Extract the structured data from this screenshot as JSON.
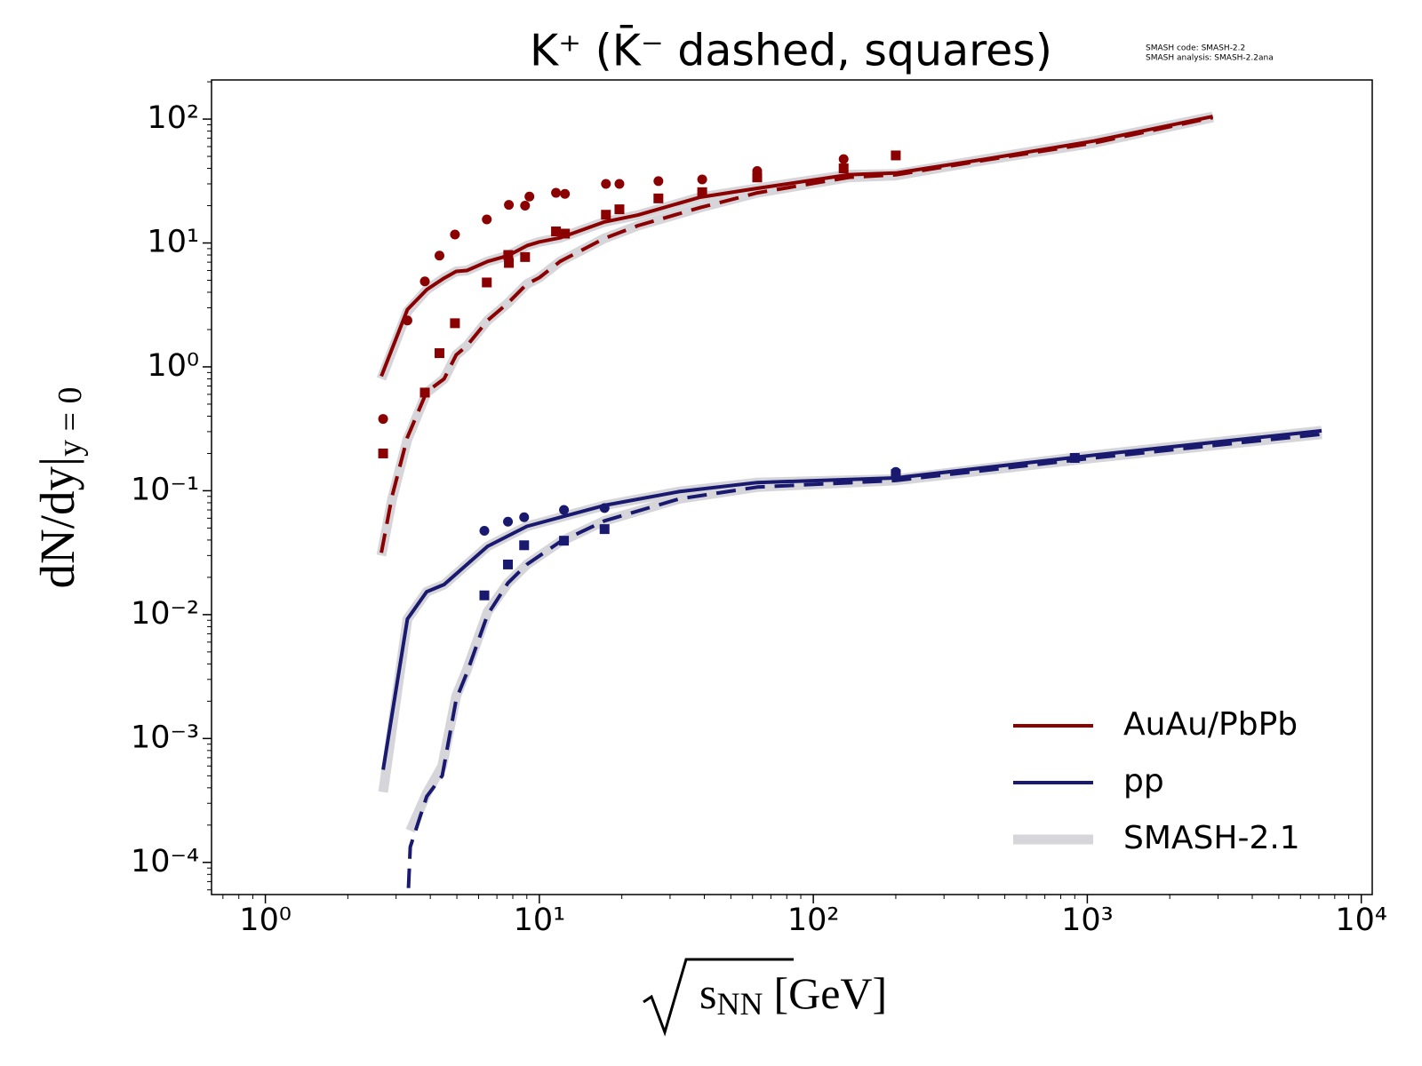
{
  "chart_data": {
    "type": "line",
    "title": "K⁺ (K̄⁻ dashed, squares)",
    "annotation": [
      "SMASH code:      SMASH-2.2",
      "SMASH analysis: SMASH-2.2ana"
    ],
    "xlabel": "s",
    "xlabel_subscript": "NN",
    "xlabel_unit": "[GeV]",
    "ylabel": "dN/dy|",
    "ylabel_subscript": "y = 0",
    "log_x": true,
    "log_y": true,
    "minor_ticks": true,
    "grid": false,
    "legend": "lower right",
    "xlim": [
      0.636,
      10964
    ],
    "ylim": [
      5.5e-05,
      207
    ],
    "xticks": [
      {
        "value": 1,
        "label": "10⁰"
      },
      {
        "value": 10,
        "label": "10¹"
      },
      {
        "value": 100,
        "label": "10²"
      },
      {
        "value": 1000,
        "label": "10³"
      },
      {
        "value": 10000,
        "label": "10⁴"
      }
    ],
    "yticks": [
      {
        "value": 0.0001,
        "label": "10⁻⁴"
      },
      {
        "value": 0.001,
        "label": "10⁻³"
      },
      {
        "value": 0.01,
        "label": "10⁻²"
      },
      {
        "value": 0.1,
        "label": "10⁻¹"
      },
      {
        "value": 1,
        "label": "10⁰"
      },
      {
        "value": 10,
        "label": "10¹"
      },
      {
        "value": 100,
        "label": "10²"
      }
    ],
    "series": [
      {
        "name": "SMASH-2.1",
        "color": "#d6d6da",
        "width": 11,
        "dashed": false,
        "x": [
          2.65,
          3.3,
          3.88,
          4.49,
          4.97,
          5.44,
          6.47,
          7.68,
          9.0,
          10.0,
          11.9,
          17.3,
          22.9,
          38.6,
          62.4,
          135,
          200,
          423,
          1058,
          2870
        ],
        "values": [
          0.8,
          2.8,
          4.2,
          5.2,
          5.9,
          6.0,
          7.1,
          7.9,
          9.5,
          10.2,
          11.0,
          14.8,
          16.8,
          23.4,
          27.6,
          35.6,
          36.0,
          47.5,
          66.6,
          105
        ]
      },
      {
        "color": "#d6d6da",
        "width": 11,
        "dashed": false,
        "x": [
          2.65,
          2.9,
          3.3,
          3.88,
          4.49,
          4.97,
          5.44,
          6.47,
          7.68,
          9.0,
          10.0,
          11.9,
          17.3,
          22.9,
          38.6,
          62.4,
          135,
          200,
          423,
          1058,
          2870
        ],
        "values": [
          0.03,
          0.085,
          0.26,
          0.62,
          0.8,
          1.25,
          1.48,
          2.37,
          3.27,
          4.66,
          5.25,
          7.1,
          10.9,
          13.8,
          19.3,
          25.4,
          33.9,
          35.0,
          46.6,
          64.2,
          103
        ]
      },
      {
        "color": "#d6d6da",
        "width": 11,
        "dashed": false,
        "x": [
          2.69,
          3.3,
          3.88,
          4.49,
          6.47,
          9.0,
          17.3,
          32.4,
          62.4,
          200,
          1058,
          7170
        ],
        "values": [
          0.00037,
          0.0092,
          0.0153,
          0.0175,
          0.0356,
          0.0516,
          0.0762,
          0.0984,
          0.1165,
          0.124,
          0.194,
          0.305
        ]
      },
      {
        "color": "#d6d6da",
        "width": 11,
        "dashed": false,
        "x": [
          3.38,
          3.88,
          4.42,
          4.97,
          5.44,
          6.47,
          7.68,
          9.0,
          11.9,
          17.3,
          32.4,
          62.4,
          200,
          1058,
          7170
        ],
        "values": [
          0.00018,
          0.00036,
          0.0006,
          0.0022,
          0.0036,
          0.0105,
          0.018,
          0.0254,
          0.0387,
          0.0572,
          0.0859,
          0.107,
          0.121,
          0.184,
          0.286
        ]
      },
      {
        "name": "AuAu/PbPb",
        "color": "#8b0000",
        "width": 4,
        "dashed": false,
        "x": [
          2.65,
          3.3,
          3.88,
          4.49,
          4.97,
          5.44,
          6.47,
          7.68,
          9.0,
          10.0,
          11.9,
          17.3,
          22.9,
          38.6,
          62.4,
          135,
          200,
          423,
          1058,
          2870
        ],
        "values": [
          0.84,
          2.9,
          4.2,
          5.2,
          5.9,
          6.0,
          7.1,
          7.9,
          9.5,
          10.2,
          11.0,
          14.8,
          16.8,
          23.4,
          27.6,
          35.6,
          36.7,
          47.5,
          66.6,
          105
        ]
      },
      {
        "color": "#8b0000",
        "width": 4,
        "dashed": true,
        "x": [
          2.65,
          2.9,
          3.3,
          3.88,
          4.49,
          4.97,
          5.44,
          6.47,
          7.68,
          9.0,
          10.0,
          11.9,
          17.3,
          22.9,
          38.6,
          62.4,
          135,
          200,
          423,
          1058,
          2870
        ],
        "values": [
          0.0316,
          0.09,
          0.27,
          0.63,
          0.8,
          1.25,
          1.48,
          2.37,
          3.27,
          4.66,
          5.25,
          7.1,
          10.9,
          13.8,
          19.3,
          25.4,
          33.9,
          35.5,
          46.6,
          64.2,
          103
        ]
      },
      {
        "name": "pp",
        "color": "#191970",
        "width": 4,
        "dashed": false,
        "x": [
          2.69,
          3.3,
          3.88,
          4.49,
          6.47,
          9.0,
          17.3,
          32.4,
          62.4,
          200,
          1058,
          7170
        ],
        "values": [
          0.00056,
          0.0092,
          0.0153,
          0.0175,
          0.0356,
          0.0516,
          0.0762,
          0.0984,
          0.1165,
          0.1268,
          0.194,
          0.305
        ]
      },
      {
        "color": "#191970",
        "width": 4,
        "dashed": true,
        "x": [
          3.33,
          3.38,
          3.88,
          4.42,
          4.97,
          5.44,
          6.47,
          7.68,
          9.0,
          11.9,
          17.3,
          32.4,
          62.4,
          200,
          1058,
          7170
        ],
        "values": [
          6.2e-05,
          0.000133,
          0.00034,
          0.0005,
          0.00207,
          0.0034,
          0.01,
          0.018,
          0.0254,
          0.0387,
          0.0572,
          0.0859,
          0.107,
          0.121,
          0.184,
          0.286
        ]
      }
    ],
    "points": [
      {
        "marker": "circle",
        "color": "#8b0000",
        "x": [
          2.69,
          3.3,
          3.82,
          4.32,
          4.92,
          6.43,
          7.74,
          8.87,
          9.2,
          11.5,
          12.4,
          17.5,
          19.6,
          27.2,
          39.3,
          62.4,
          129
        ],
        "values": [
          0.38,
          2.37,
          4.9,
          7.9,
          11.7,
          15.5,
          20.3,
          20.0,
          23.7,
          25.4,
          24.9,
          30.0,
          30.0,
          31.6,
          32.6,
          38.1,
          47.5
        ]
      },
      {
        "marker": "square",
        "color": "#8b0000",
        "x": [
          2.69,
          3.82,
          4.32,
          4.92,
          6.43,
          7.74,
          7.7,
          8.87,
          11.5,
          12.4,
          17.5,
          19.6,
          27.2,
          39.3,
          62.4,
          129,
          200
        ],
        "values": [
          0.2,
          0.62,
          1.29,
          2.25,
          4.8,
          6.9,
          8.0,
          7.7,
          12.4,
          11.9,
          16.9,
          18.7,
          22.9,
          25.7,
          33.8,
          40.0,
          50.9
        ]
      },
      {
        "marker": "circle",
        "color": "#191970",
        "x": [
          6.3,
          7.68,
          8.8,
          12.3,
          17.3,
          200,
          900
        ],
        "values": [
          0.0475,
          0.0563,
          0.0611,
          0.07,
          0.0725,
          0.142,
          0.184
        ]
      },
      {
        "marker": "square",
        "color": "#191970",
        "x": [
          6.3,
          7.68,
          8.8,
          12.3,
          17.3,
          200,
          900
        ],
        "values": [
          0.0143,
          0.0254,
          0.0363,
          0.0395,
          0.049,
          0.136,
          0.184
        ]
      }
    ]
  }
}
